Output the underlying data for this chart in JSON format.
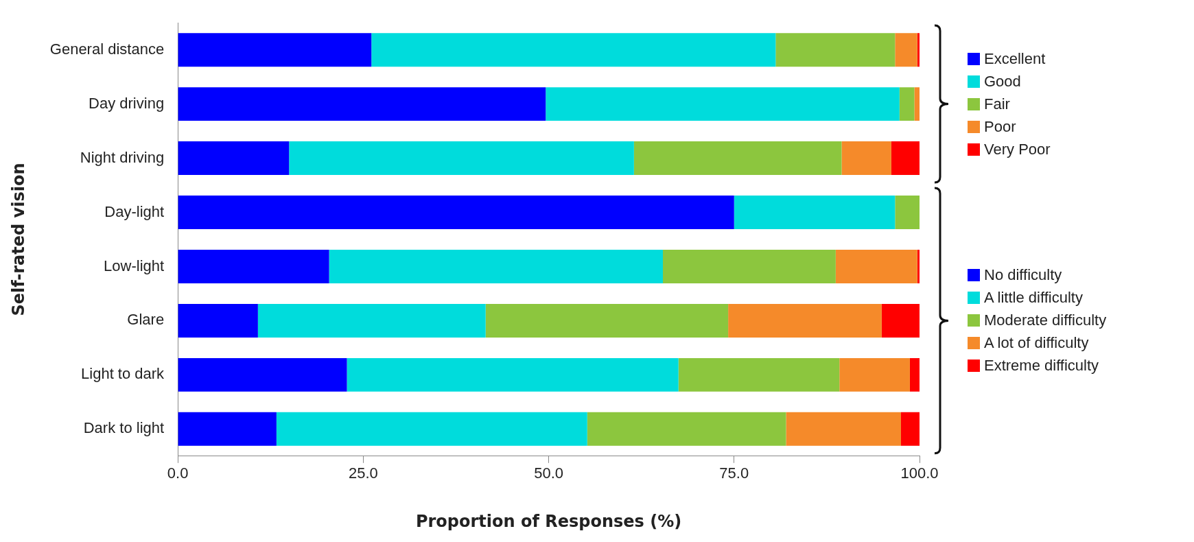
{
  "chart_data": {
    "type": "bar",
    "orientation": "horizontal",
    "stacked": true,
    "xlabel": "Proportion of Responses (%)",
    "ylabel": "Self-rated vision",
    "categories": [
      "General distance",
      "Day driving",
      "Night driving",
      "Day-light",
      "Low-light",
      "Glare",
      "Light to dark",
      "Dark to light"
    ],
    "series": [
      {
        "name": "Excellent",
        "color": "#0000ff",
        "values": [
          26.1,
          49.6,
          15.0,
          null,
          null,
          null,
          null,
          null
        ]
      },
      {
        "name": "Good",
        "color": "#00dcdc",
        "values": [
          54.5,
          47.7,
          46.5,
          null,
          null,
          null,
          null,
          null
        ]
      },
      {
        "name": "Fair",
        "color": "#8cc63e",
        "values": [
          16.1,
          2.0,
          28.0,
          null,
          null,
          null,
          null,
          null
        ]
      },
      {
        "name": "Poor",
        "color": "#f58a2a",
        "values": [
          3.0,
          0.7,
          6.7,
          null,
          null,
          null,
          null,
          null
        ]
      },
      {
        "name": "Very Poor",
        "color": "#ff0000",
        "values": [
          0.3,
          0,
          3.8,
          null,
          null,
          null,
          null,
          null
        ]
      },
      {
        "name": "No difficulty",
        "color": "#0000ff",
        "values": [
          null,
          null,
          null,
          75.0,
          20.4,
          10.8,
          22.8,
          13.3
        ]
      },
      {
        "name": "A little difficulty",
        "color": "#00dcdc",
        "values": [
          null,
          null,
          null,
          21.7,
          45.0,
          30.7,
          44.7,
          41.9
        ]
      },
      {
        "name": "Moderate difficulty",
        "color": "#8cc63e",
        "values": [
          null,
          null,
          null,
          3.3,
          23.3,
          32.7,
          21.7,
          26.8
        ]
      },
      {
        "name": "A lot of difficulty",
        "color": "#f58a2a",
        "values": [
          null,
          null,
          null,
          0,
          11.0,
          20.7,
          9.5,
          15.5
        ]
      },
      {
        "name": "Extreme difficulty",
        "color": "#ff0000",
        "values": [
          null,
          null,
          null,
          0,
          0.3,
          5.1,
          1.3,
          2.5
        ]
      }
    ],
    "xlim": [
      0,
      100
    ],
    "xticks": [
      {
        "value": 0,
        "label": "0.0"
      },
      {
        "value": 25,
        "label": "25.0"
      },
      {
        "value": 50,
        "label": "50.0"
      },
      {
        "value": 75,
        "label": "75.0"
      },
      {
        "value": 100,
        "label": "100.0"
      }
    ],
    "grid": false,
    "legend": "right"
  }
}
